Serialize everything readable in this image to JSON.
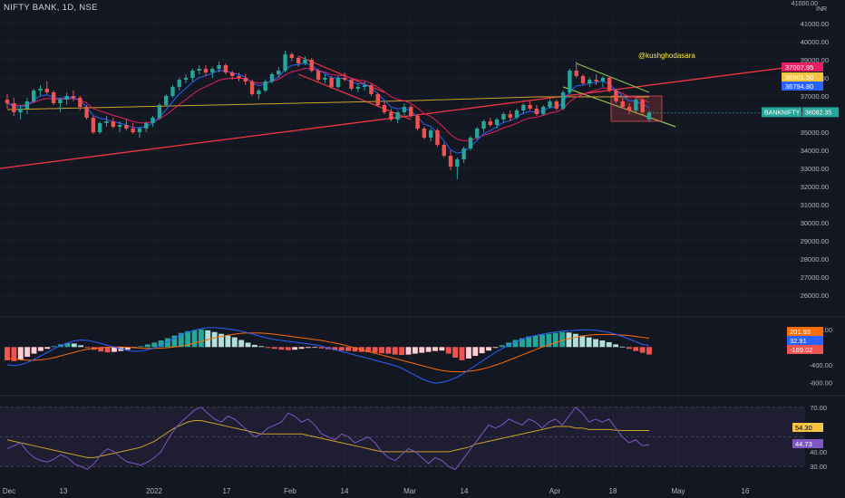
{
  "header": {
    "title": "NIFTY BANK, 1D, NSE"
  },
  "currency": "INR",
  "watermark": "@kushghodasara",
  "symbol_tag": {
    "name": "BANKNIFTY",
    "value": "36082.35"
  },
  "colors": {
    "background": "#131722",
    "up": "#26a69a",
    "down": "#ef5350",
    "ema_fast": "#2962ff",
    "ema_slow": "#e91e63",
    "ma_long": "#c9a227",
    "trendline": "#f23645",
    "channel": "#8bc34a",
    "watermark": "#ffeb3b",
    "macd_line": "#2962ff",
    "signal_line": "#ff6d00",
    "rsi": "#7e57c2",
    "rsi_ma": "#c9a227"
  },
  "chart_data": [
    {
      "type": "candlestick",
      "title": "NIFTY BANK, 1D, NSE",
      "x_tick_labels": [
        "Dec",
        "13",
        "2022",
        "17",
        "Feb",
        "14",
        "Mar",
        "14",
        "Apr",
        "18",
        "May",
        "16"
      ],
      "y_tick_labels": [
        "41000.00",
        "40000.00",
        "39000.00",
        "38000.00",
        "37000.00",
        "36000.00",
        "35000.00",
        "34000.00",
        "33000.00",
        "32000.00",
        "31000.00",
        "30000.00",
        "29000.00",
        "28000.00",
        "27000.00",
        "26000.00"
      ],
      "ylim": [
        25300,
        41600
      ],
      "price_labels": [
        {
          "value": "37007.95",
          "color": "#e91e63"
        },
        {
          "value": "36901.50",
          "color": "#f5c542"
        },
        {
          "value": "36794.80",
          "color": "#2962ff"
        },
        {
          "value": "36082.35",
          "color": "#26a69a"
        }
      ],
      "candles": [
        [
          36800,
          37100,
          36300,
          36600
        ],
        [
          36600,
          36900,
          35900,
          36100
        ],
        [
          36100,
          36500,
          35700,
          36300
        ],
        [
          36300,
          36900,
          36000,
          36700
        ],
        [
          36700,
          37400,
          36600,
          37300
        ],
        [
          37300,
          37600,
          37000,
          37400
        ],
        [
          37400,
          37800,
          37100,
          37200
        ],
        [
          37200,
          37300,
          36500,
          36600
        ],
        [
          36600,
          36900,
          36100,
          36800
        ],
        [
          36800,
          37200,
          36500,
          37000
        ],
        [
          37000,
          37300,
          36700,
          36900
        ],
        [
          36900,
          37000,
          36200,
          36400
        ],
        [
          36400,
          36500,
          35700,
          35800
        ],
        [
          35800,
          35900,
          34900,
          35000
        ],
        [
          35000,
          35600,
          34900,
          35500
        ],
        [
          35500,
          35900,
          35300,
          35600
        ],
        [
          35600,
          35800,
          35200,
          35300
        ],
        [
          35300,
          35600,
          35000,
          35400
        ],
        [
          35400,
          35700,
          35100,
          35200
        ],
        [
          35200,
          35500,
          34900,
          35000
        ],
        [
          35000,
          35300,
          34700,
          35200
        ],
        [
          35200,
          35600,
          35000,
          35500
        ],
        [
          35500,
          35900,
          35300,
          35800
        ],
        [
          35800,
          36600,
          35700,
          36500
        ],
        [
          36500,
          37100,
          36400,
          37000
        ],
        [
          37000,
          37600,
          36900,
          37500
        ],
        [
          37500,
          38000,
          37300,
          37900
        ],
        [
          37900,
          38200,
          37700,
          38000
        ],
        [
          38000,
          38500,
          37800,
          38400
        ],
        [
          38400,
          38700,
          38200,
          38500
        ],
        [
          38500,
          38700,
          38100,
          38300
        ],
        [
          38300,
          38600,
          38000,
          38500
        ],
        [
          38500,
          38900,
          38300,
          38700
        ],
        [
          38700,
          38800,
          38200,
          38300
        ],
        [
          38300,
          38400,
          37900,
          38100
        ],
        [
          38100,
          38300,
          37800,
          38000
        ],
        [
          38000,
          38200,
          37600,
          37800
        ],
        [
          37800,
          37900,
          37000,
          37100
        ],
        [
          37100,
          37400,
          36800,
          37300
        ],
        [
          37300,
          37900,
          37200,
          37800
        ],
        [
          37800,
          38300,
          37700,
          38200
        ],
        [
          38200,
          38600,
          38000,
          38400
        ],
        [
          38400,
          39500,
          38300,
          39300
        ],
        [
          39300,
          39400,
          38900,
          39100
        ],
        [
          39100,
          39200,
          38600,
          38800
        ],
        [
          38800,
          39200,
          38700,
          39000
        ],
        [
          39000,
          39100,
          38300,
          38400
        ],
        [
          38400,
          38500,
          37800,
          37900
        ],
        [
          37900,
          38200,
          37700,
          38000
        ],
        [
          38000,
          38100,
          37400,
          37500
        ],
        [
          37500,
          38100,
          37400,
          38000
        ],
        [
          38000,
          38300,
          37800,
          37900
        ],
        [
          37900,
          38000,
          37300,
          37400
        ],
        [
          37400,
          37700,
          37200,
          37500
        ],
        [
          37500,
          37800,
          37300,
          37600
        ],
        [
          37600,
          37700,
          37000,
          37100
        ],
        [
          37100,
          37200,
          36400,
          36500
        ],
        [
          36500,
          36700,
          36000,
          36100
        ],
        [
          36100,
          36300,
          35600,
          35700
        ],
        [
          35700,
          36200,
          35500,
          36100
        ],
        [
          36100,
          36600,
          35900,
          36400
        ],
        [
          36400,
          36500,
          35800,
          35900
        ],
        [
          35900,
          36000,
          35100,
          35200
        ],
        [
          35200,
          35300,
          34600,
          34700
        ],
        [
          34700,
          35200,
          34500,
          35100
        ],
        [
          35100,
          35200,
          34200,
          34300
        ],
        [
          34300,
          34400,
          33600,
          33700
        ],
        [
          33700,
          34000,
          32900,
          33100
        ],
        [
          33100,
          33600,
          32400,
          33500
        ],
        [
          33500,
          34200,
          33300,
          34100
        ],
        [
          34100,
          34800,
          34000,
          34700
        ],
        [
          34700,
          35300,
          34600,
          35200
        ],
        [
          35200,
          35700,
          35000,
          35600
        ],
        [
          35600,
          35800,
          35300,
          35400
        ],
        [
          35400,
          35800,
          35200,
          35700
        ],
        [
          35700,
          36100,
          35500,
          36000
        ],
        [
          36000,
          36200,
          35600,
          35800
        ],
        [
          35800,
          36300,
          35700,
          36200
        ],
        [
          36200,
          36600,
          36000,
          36500
        ],
        [
          36500,
          36700,
          36200,
          36300
        ],
        [
          36300,
          36500,
          35900,
          36000
        ],
        [
          36000,
          36500,
          35900,
          36400
        ],
        [
          36400,
          36800,
          36300,
          36700
        ],
        [
          36700,
          36800,
          36200,
          36300
        ],
        [
          36300,
          37300,
          36200,
          37200
        ],
        [
          37200,
          38500,
          37100,
          38400
        ],
        [
          38400,
          38900,
          38000,
          38100
        ],
        [
          38100,
          38200,
          37600,
          37700
        ],
        [
          37700,
          38000,
          37500,
          37900
        ],
        [
          37900,
          38200,
          37600,
          37800
        ],
        [
          37800,
          38100,
          37500,
          38000
        ],
        [
          38000,
          38100,
          37200,
          37300
        ],
        [
          37300,
          37400,
          36600,
          36700
        ],
        [
          36700,
          36900,
          36300,
          36400
        ],
        [
          36400,
          36600,
          36000,
          36200
        ],
        [
          36200,
          36900,
          36100,
          36800
        ],
        [
          36800,
          36900,
          36000,
          36100
        ],
        [
          35700,
          36200,
          35600,
          36082
        ]
      ],
      "ma_long": [
        36800,
        36820,
        36840,
        36860,
        36880,
        36900,
        36920,
        36940,
        36960,
        36980
      ],
      "ema_fast_smooth": 0.35,
      "ema_slow_smooth": 0.18
    },
    {
      "type": "macd",
      "y_tick_labels": [
        "400.00",
        "-400.00",
        "-800.00"
      ],
      "ylim": [
        -1000,
        560
      ],
      "value_labels": [
        {
          "value": "201.93",
          "color": "#ff6d00"
        },
        {
          "value": "32.91",
          "color": "#2962ff"
        },
        {
          "value": "-169.02",
          "color": "#ef5350"
        }
      ],
      "histogram": [
        -300,
        -320,
        -280,
        -220,
        -150,
        -90,
        -40,
        20,
        60,
        90,
        80,
        40,
        -20,
        -60,
        -100,
        -120,
        -110,
        -90,
        -60,
        -20,
        20,
        60,
        100,
        150,
        200,
        260,
        320,
        360,
        380,
        400,
        380,
        340,
        300,
        260,
        220,
        160,
        100,
        50,
        20,
        -20,
        -40,
        -60,
        -70,
        -60,
        -40,
        -20,
        -10,
        -30,
        -50,
        -70,
        -80,
        -90,
        -100,
        -110,
        -120,
        -130,
        -140,
        -150,
        -170,
        -180,
        -170,
        -150,
        -130,
        -110,
        -90,
        -80,
        -150,
        -240,
        -300,
        -260,
        -200,
        -140,
        -80,
        -20,
        40,
        100,
        160,
        200,
        240,
        260,
        280,
        300,
        320,
        340,
        330,
        300,
        260,
        220,
        180,
        150,
        110,
        60,
        10,
        -40,
        -90,
        -130,
        -169
      ],
      "macd": [
        -400,
        -420,
        -400,
        -350,
        -280,
        -200,
        -120,
        -40,
        30,
        90,
        140,
        160,
        150,
        120,
        80,
        40,
        0,
        -40,
        -80,
        -100,
        -90,
        -60,
        -20,
        40,
        120,
        200,
        280,
        340,
        380,
        420,
        440,
        440,
        430,
        410,
        390,
        360,
        320,
        280,
        240,
        200,
        170,
        150,
        130,
        110,
        90,
        70,
        50,
        20,
        -20,
        -60,
        -100,
        -140,
        -180,
        -220,
        -260,
        -300,
        -340,
        -380,
        -420,
        -480,
        -560,
        -640,
        -720,
        -780,
        -820,
        -800,
        -760,
        -700,
        -620,
        -520,
        -420,
        -320,
        -220,
        -120,
        -40,
        40,
        110,
        170,
        220,
        260,
        290,
        320,
        340,
        360,
        370,
        380,
        390,
        390,
        380,
        360,
        330,
        290,
        240,
        180,
        120,
        60,
        32.91
      ],
      "signal": [
        -250,
        -270,
        -290,
        -300,
        -300,
        -290,
        -270,
        -240,
        -200,
        -160,
        -120,
        -80,
        -50,
        -30,
        -15,
        -5,
        0,
        0,
        -5,
        -15,
        -25,
        -30,
        -30,
        -25,
        -15,
        0,
        20,
        50,
        90,
        130,
        170,
        210,
        240,
        270,
        290,
        310,
        320,
        320,
        315,
        305,
        290,
        270,
        250,
        230,
        210,
        190,
        170,
        150,
        120,
        90,
        60,
        20,
        -20,
        -60,
        -100,
        -140,
        -180,
        -220,
        -260,
        -300,
        -340,
        -380,
        -420,
        -460,
        -500,
        -530,
        -550,
        -560,
        -560,
        -550,
        -530,
        -500,
        -460,
        -410,
        -360,
        -300,
        -240,
        -180,
        -120,
        -60,
        0,
        50,
        100,
        150,
        190,
        220,
        250,
        270,
        280,
        285,
        285,
        280,
        270,
        260,
        240,
        220,
        201.93
      ]
    },
    {
      "type": "line",
      "name": "RSI",
      "y_tick_labels": [
        "70.00",
        "50.00",
        "40.00",
        "30.00"
      ],
      "ylim": [
        24,
        76
      ],
      "value_labels": [
        {
          "value": "54.30",
          "color": "#f5c542"
        },
        {
          "value": "44.73",
          "color": "#7e57c2"
        }
      ],
      "rsi": [
        42,
        44,
        46,
        40,
        36,
        34,
        33,
        35,
        38,
        36,
        32,
        30,
        28,
        32,
        38,
        42,
        40,
        36,
        33,
        32,
        31,
        33,
        36,
        40,
        48,
        55,
        60,
        64,
        68,
        70,
        66,
        62,
        60,
        64,
        62,
        58,
        54,
        50,
        52,
        56,
        58,
        60,
        66,
        64,
        60,
        62,
        58,
        52,
        50,
        48,
        52,
        50,
        46,
        48,
        50,
        46,
        40,
        36,
        34,
        38,
        42,
        40,
        36,
        32,
        36,
        34,
        30,
        28,
        34,
        40,
        46,
        52,
        58,
        56,
        58,
        62,
        60,
        58,
        62,
        60,
        56,
        60,
        62,
        58,
        64,
        70,
        66,
        60,
        62,
        60,
        62,
        56,
        50,
        46,
        48,
        44,
        44.73
      ],
      "rsi_ma": [
        48,
        47,
        46,
        45,
        44,
        43,
        42,
        41,
        40,
        39,
        38,
        37,
        36,
        36,
        37,
        38,
        39,
        40,
        41,
        42,
        43,
        45,
        47,
        50,
        53,
        56,
        58,
        60,
        61,
        61,
        60,
        59,
        58,
        57,
        56,
        55,
        54,
        53,
        52,
        52,
        52,
        52,
        52,
        52,
        52,
        51,
        50,
        49,
        48,
        47,
        46,
        45,
        44,
        43,
        42,
        41,
        40,
        40,
        40,
        40,
        40,
        40,
        40,
        40,
        40,
        40,
        40,
        41,
        42,
        43,
        45,
        46,
        47,
        48,
        49,
        50,
        51,
        52,
        53,
        54,
        55,
        56,
        57,
        57,
        57,
        56,
        56,
        55,
        55,
        55,
        55,
        54.5,
        54.3,
        54.3,
        54.3,
        54.3,
        54.3
      ],
      "band": [
        30,
        70
      ],
      "mid": 50
    }
  ]
}
